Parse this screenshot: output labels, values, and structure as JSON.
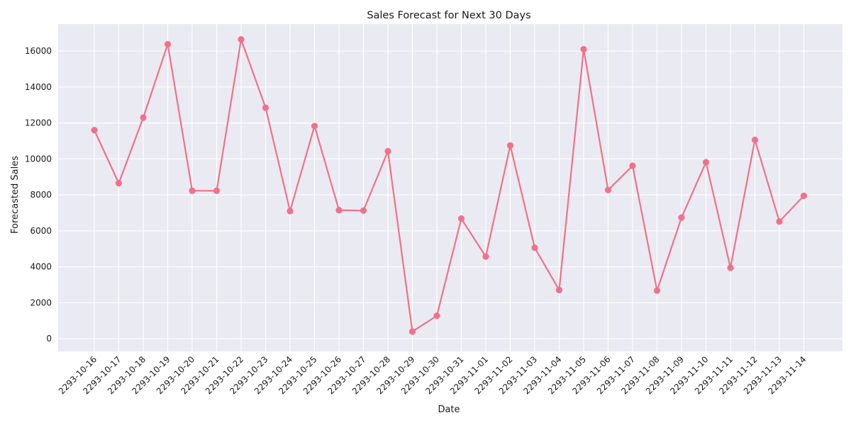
{
  "chart_data": {
    "type": "line",
    "title": "Sales Forecast for Next 30 Days",
    "xlabel": "Date",
    "ylabel": "Forecasted Sales",
    "x": [
      "2293-10-16",
      "2293-10-17",
      "2293-10-18",
      "2293-10-19",
      "2293-10-20",
      "2293-10-21",
      "2293-10-22",
      "2293-10-23",
      "2293-10-24",
      "2293-10-25",
      "2293-10-26",
      "2293-10-27",
      "2293-10-28",
      "2293-10-29",
      "2293-10-30",
      "2293-10-31",
      "2293-11-01",
      "2293-11-02",
      "2293-11-03",
      "2293-11-04",
      "2293-11-05",
      "2293-11-06",
      "2293-11-07",
      "2293-11-08",
      "2293-11-09",
      "2293-11-10",
      "2293-11-11",
      "2293-11-12",
      "2293-11-13",
      "2293-11-14"
    ],
    "values": [
      11600,
      8650,
      12300,
      16380,
      8230,
      8230,
      16650,
      12850,
      7100,
      11830,
      7150,
      7130,
      10430,
      400,
      1280,
      6680,
      4570,
      10750,
      5060,
      2710,
      16100,
      8270,
      9620,
      2680,
      6740,
      9820,
      3950,
      11060,
      6520,
      7950
    ],
    "yticks": [
      0,
      2000,
      4000,
      6000,
      8000,
      10000,
      12000,
      14000,
      16000
    ],
    "ylim": [
      -700,
      17500
    ],
    "grid": true,
    "colors": {
      "line": "#f1718a",
      "background": "#eaeaf2",
      "grid": "#ffffff"
    }
  }
}
